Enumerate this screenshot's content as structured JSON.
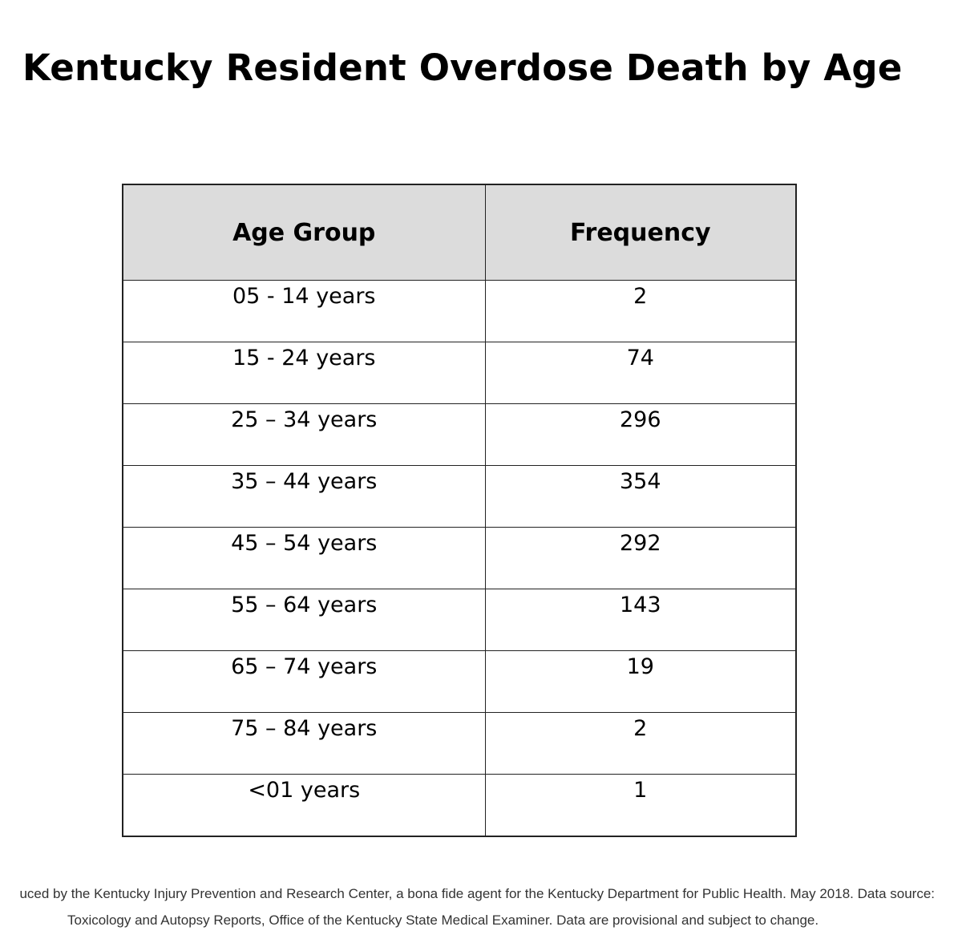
{
  "title": "Kentucky Resident Overdose Death by Age",
  "chart_data": {
    "type": "table",
    "title": "Kentucky Resident Overdose Death by Age",
    "columns": [
      "Age Group",
      "Frequency"
    ],
    "rows": [
      {
        "age_group": "05 - 14 years",
        "frequency": "2"
      },
      {
        "age_group": "15 - 24 years",
        "frequency": "74"
      },
      {
        "age_group": "25 – 34 years",
        "frequency": "296"
      },
      {
        "age_group": "35 – 44 years",
        "frequency": "354"
      },
      {
        "age_group": "45 – 54 years",
        "frequency": "292"
      },
      {
        "age_group": "55 – 64 years",
        "frequency": "143"
      },
      {
        "age_group": "65 – 74 years",
        "frequency": "19"
      },
      {
        "age_group": "75 – 84 years",
        "frequency": "2"
      },
      {
        "age_group": "<01 years",
        "frequency": "1"
      }
    ]
  },
  "footer": {
    "line1": "uced by the Kentucky Injury Prevention and Research Center, a bona fide agent for the Kentucky Department for Public Health. May 2018. Data source:",
    "line2": "Toxicology and Autopsy Reports, Office of the Kentucky State Medical Examiner. Data are provisional and subject to change."
  }
}
